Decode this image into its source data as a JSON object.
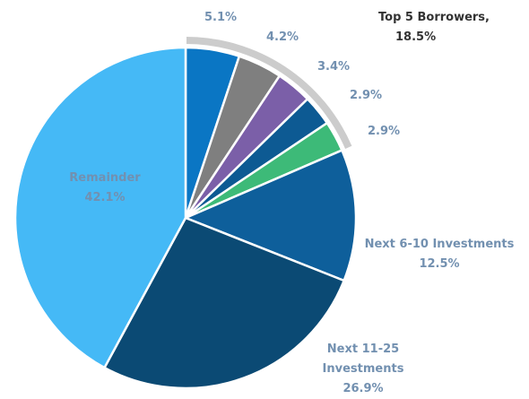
{
  "chart_data": {
    "type": "pie",
    "categories": [
      null,
      null,
      null,
      null,
      null,
      "Next 6-10 Investments",
      "Next 11-25 Investments",
      "Remainder"
    ],
    "values": [
      5.1,
      4.2,
      3.4,
      2.9,
      2.9,
      12.5,
      26.9,
      42.1
    ],
    "value_labels": [
      "5.1%",
      "4.2%",
      "3.4%",
      "2.9%",
      "2.9%",
      "12.5%",
      "26.9%",
      "42.1%"
    ],
    "colors": [
      "#0a76c4",
      "#7f7f7f",
      "#7b5fa8",
      "#0d5a93",
      "#3dba78",
      "#0e5f9b",
      "#0b4a74",
      "#45b9f6"
    ],
    "group": {
      "label": "Top 5 Borrowers,",
      "value": 18.5,
      "value_label": "18.5%",
      "color": "#cccccc"
    }
  }
}
